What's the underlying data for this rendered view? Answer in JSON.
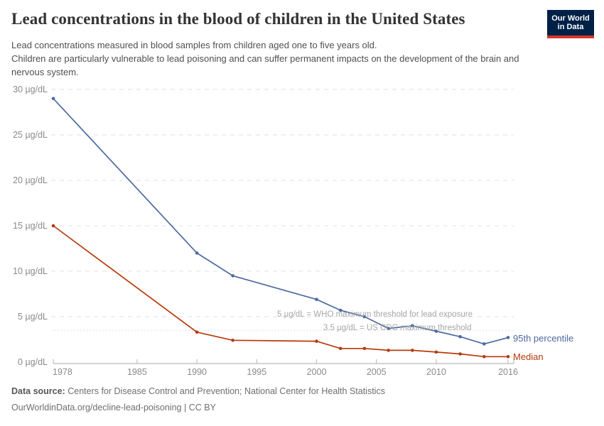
{
  "header": {
    "title": "Lead concentrations in the blood of children in the United States",
    "subtitle_line1": "Lead concentrations measured in blood samples from children aged one to five years old.",
    "subtitle_line2": "Children are particularly vulnerable to lead poisoning and can suffer permanent impacts on the development of the brain and nervous system.",
    "logo": {
      "line1": "Our World",
      "line2": "in Data",
      "bg_color": "#002147",
      "stripe_color": "#D7352B",
      "text_color": "#ffffff"
    }
  },
  "chart_data": {
    "type": "line",
    "title": "Lead concentrations in the blood of children in the United States",
    "xlabel": "",
    "ylabel": "µg/dL",
    "xlim": [
      1978,
      2016
    ],
    "ylim": [
      0,
      30
    ],
    "grid": "horizontal-dashed",
    "legend_position": "end-of-lines",
    "x": [
      1978,
      1990,
      1993,
      2000,
      2002,
      2004,
      2006,
      2008,
      2010,
      2012,
      2014,
      2016
    ],
    "series": [
      {
        "name": "95th percentile",
        "color": "#4C6AA0",
        "values": [
          29,
          12,
          9.5,
          6.9,
          5.7,
          5.0,
          3.7,
          4.0,
          3.4,
          2.8,
          2.0,
          2.7
        ]
      },
      {
        "name": "Median",
        "color": "#B73A0D",
        "values": [
          15,
          3.3,
          2.4,
          2.3,
          1.5,
          1.5,
          1.3,
          1.3,
          1.1,
          0.9,
          0.6,
          0.6
        ]
      }
    ],
    "y_ticks": [
      {
        "value": 0,
        "label": "0 µg/dL"
      },
      {
        "value": 5,
        "label": "5 µg/dL"
      },
      {
        "value": 10,
        "label": "10 µg/dL"
      },
      {
        "value": 15,
        "label": "15 µg/dL"
      },
      {
        "value": 20,
        "label": "20 µg/dL"
      },
      {
        "value": 25,
        "label": "25 µg/dL"
      },
      {
        "value": 30,
        "label": "30 µg/dL"
      }
    ],
    "x_ticks": [
      {
        "value": 1978,
        "label": "1978"
      },
      {
        "value": 1985,
        "label": "1985"
      },
      {
        "value": 1990,
        "label": "1990"
      },
      {
        "value": 1995,
        "label": "1995"
      },
      {
        "value": 2000,
        "label": "2000"
      },
      {
        "value": 2005,
        "label": "2005"
      },
      {
        "value": 2010,
        "label": "2010"
      },
      {
        "value": 2016,
        "label": "2016"
      }
    ],
    "annotations": [
      {
        "value": 5,
        "text": "5 µg/dL = WHO maximum threshold for lead exposure",
        "line_style": "dashed"
      },
      {
        "value": 3.5,
        "text": "3.5 µg/dL = US CDC maximum threshold",
        "line_style": "dotted"
      }
    ]
  },
  "footer": {
    "source_label": "Data source:",
    "source_text": "Centers for Disease Control and Prevention; National Center for Health Statistics",
    "license_line": "OurWorldinData.org/decline-lead-poisoning | CC BY"
  }
}
